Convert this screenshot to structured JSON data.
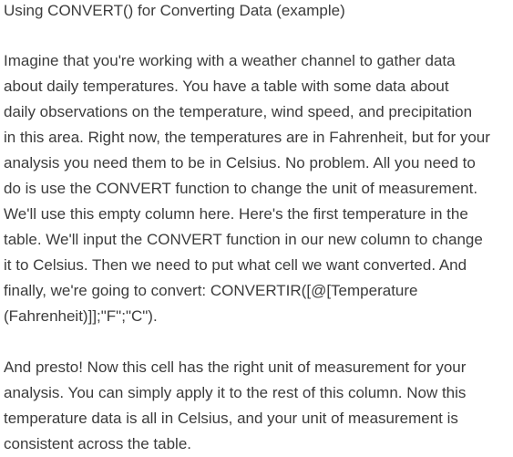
{
  "document": {
    "title": "Using CONVERT() for Converting Data (example)",
    "paragraph1_lines": [
      "Imagine that you're working with a weather channel to gather data",
      "about daily temperatures. You have a table with some data about",
      "daily observations on the temperature, wind speed, and precipitation",
      "in this area. Right now, the temperatures are in Fahrenheit, but for your",
      "analysis you need them to be in Celsius. No problem. All you need to",
      "do is use the CONVERT function to change the unit of measurement.",
      "We'll use this empty column here. Here's the first temperature in the",
      "table. We'll input the CONVERT function in our new column to change",
      "it to Celsius. Then we need to put what cell we want converted. And",
      "finally, we're going to convert: CONVERTIR([@[Temperature",
      "(Fahrenheit)]];\"F\";\"C\")."
    ],
    "paragraph2_lines": [
      "And presto! Now this cell has the right unit of measurement for your",
      "analysis. You can simply apply it to the rest of this column. Now this",
      "temperature data is all in Celsius, and your unit of measurement is",
      "consistent across the table."
    ]
  }
}
